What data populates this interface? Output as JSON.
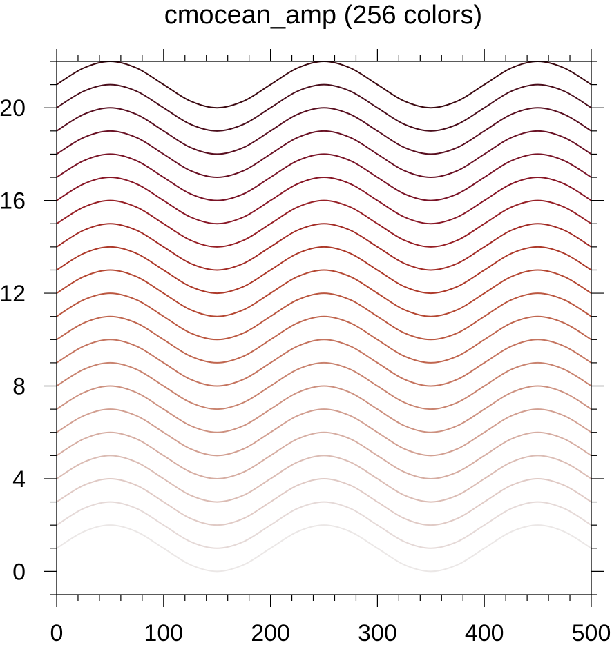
{
  "chart_data": {
    "type": "line",
    "title": "cmocean_amp (256 colors)",
    "xlabel": "",
    "ylabel": "",
    "xlim": [
      0,
      500
    ],
    "ylim": [
      -1,
      22
    ],
    "x_ticks": [
      0,
      100,
      200,
      300,
      400,
      500
    ],
    "y_ticks": [
      0,
      4,
      8,
      12,
      16,
      20
    ],
    "grid": false,
    "legend": "none",
    "x": [
      0,
      25,
      50,
      75,
      100,
      125,
      150,
      175,
      200,
      225,
      250,
      275,
      300,
      325,
      350,
      375,
      400,
      425,
      450,
      475,
      500
    ],
    "series": [
      {
        "color": "#ebe7e6",
        "values": [
          1,
          1.71,
          2,
          1.71,
          1,
          0.29,
          0,
          0.29,
          1,
          1.71,
          2,
          1.71,
          1,
          0.29,
          0,
          0.29,
          1,
          1.71,
          2,
          1.71,
          1
        ]
      },
      {
        "color": "#e5d9d7",
        "values": [
          2,
          2.71,
          3,
          2.71,
          2,
          1.29,
          1,
          1.29,
          2,
          2.71,
          3,
          2.71,
          2,
          1.29,
          1,
          1.29,
          2,
          2.71,
          3,
          2.71,
          2
        ]
      },
      {
        "color": "#e0cac5",
        "values": [
          3,
          3.71,
          4,
          3.71,
          3,
          2.29,
          2,
          2.29,
          3,
          3.71,
          4,
          3.71,
          3,
          2.29,
          2,
          2.29,
          3,
          3.71,
          4,
          3.71,
          3
        ]
      },
      {
        "color": "#dbbcb4",
        "values": [
          4,
          4.71,
          5,
          4.71,
          4,
          3.29,
          3,
          3.29,
          4,
          4.71,
          5,
          4.71,
          4,
          3.29,
          3,
          3.29,
          4,
          4.71,
          5,
          4.71,
          4
        ]
      },
      {
        "color": "#d6ada2",
        "values": [
          5,
          5.71,
          6,
          5.71,
          5,
          4.29,
          4,
          4.29,
          5,
          5.71,
          6,
          5.71,
          5,
          4.29,
          4,
          4.29,
          5,
          5.71,
          6,
          5.71,
          5
        ]
      },
      {
        "color": "#d29f91",
        "values": [
          6,
          6.71,
          7,
          6.71,
          6,
          5.29,
          5,
          5.29,
          6,
          6.71,
          7,
          6.71,
          6,
          5.29,
          5,
          5.29,
          6,
          6.71,
          7,
          6.71,
          6
        ]
      },
      {
        "color": "#cd9180",
        "values": [
          7,
          7.71,
          8,
          7.71,
          7,
          6.29,
          6,
          6.29,
          7,
          7.71,
          8,
          7.71,
          7,
          6.29,
          6,
          6.29,
          7,
          7.71,
          8,
          7.71,
          7
        ]
      },
      {
        "color": "#c9836f",
        "values": [
          8,
          8.71,
          9,
          8.71,
          8,
          7.29,
          7,
          7.29,
          8,
          8.71,
          9,
          8.71,
          8,
          7.29,
          7,
          7.29,
          8,
          8.71,
          9,
          8.71,
          8
        ]
      },
      {
        "color": "#c5745f",
        "values": [
          9,
          9.71,
          10,
          9.71,
          9,
          8.29,
          8,
          8.29,
          9,
          9.71,
          10,
          9.71,
          9,
          8.29,
          8,
          8.29,
          9,
          9.71,
          10,
          9.71,
          9
        ]
      },
      {
        "color": "#c0664f",
        "values": [
          10,
          10.71,
          11,
          10.71,
          10,
          9.29,
          9,
          9.29,
          10,
          10.71,
          11,
          10.71,
          10,
          9.29,
          9,
          9.29,
          10,
          10.71,
          11,
          10.71,
          10
        ]
      },
      {
        "color": "#bb5740",
        "values": [
          11,
          11.71,
          12,
          11.71,
          11,
          10.29,
          10,
          10.29,
          11,
          11.71,
          12,
          11.71,
          11,
          10.29,
          10,
          10.29,
          11,
          11.71,
          12,
          11.71,
          11
        ]
      },
      {
        "color": "#b54833",
        "values": [
          12,
          12.71,
          13,
          12.71,
          12,
          11.29,
          11,
          11.29,
          12,
          12.71,
          13,
          12.71,
          12,
          11.29,
          11,
          11.29,
          12,
          12.71,
          13,
          12.71,
          12
        ]
      },
      {
        "color": "#ad3929",
        "values": [
          13,
          13.71,
          14,
          13.71,
          13,
          12.29,
          12,
          12.29,
          13,
          13.71,
          14,
          13.71,
          13,
          12.29,
          12,
          12.29,
          13,
          13.71,
          14,
          13.71,
          13
        ]
      },
      {
        "color": "#a22b25",
        "values": [
          14,
          14.71,
          15,
          14.71,
          14,
          13.29,
          13,
          13.29,
          14,
          14.71,
          15,
          14.71,
          14,
          13.29,
          13,
          13.29,
          14,
          14.71,
          15,
          14.71,
          14
        ]
      },
      {
        "color": "#961f25",
        "values": [
          15,
          15.71,
          16,
          15.71,
          15,
          14.29,
          14,
          14.29,
          15,
          15.71,
          16,
          15.71,
          15,
          14.29,
          14,
          14.29,
          15,
          15.71,
          16,
          15.71,
          15
        ]
      },
      {
        "color": "#881726",
        "values": [
          16,
          16.71,
          17,
          16.71,
          16,
          15.29,
          15,
          15.29,
          16,
          16.71,
          17,
          16.71,
          16,
          15.29,
          15,
          15.29,
          16,
          16.71,
          17,
          16.71,
          16
        ]
      },
      {
        "color": "#791326",
        "values": [
          17,
          17.71,
          18,
          17.71,
          17,
          16.29,
          16,
          16.29,
          17,
          17.71,
          18,
          17.71,
          17,
          16.29,
          16,
          16.29,
          17,
          17.71,
          18,
          17.71,
          17
        ]
      },
      {
        "color": "#691124",
        "values": [
          18,
          18.71,
          19,
          18.71,
          18,
          17.29,
          17,
          17.29,
          18,
          18.71,
          19,
          18.71,
          18,
          17.29,
          17,
          17.29,
          18,
          18.71,
          19,
          18.71,
          18
        ]
      },
      {
        "color": "#590f20",
        "values": [
          19,
          19.71,
          20,
          19.71,
          19,
          18.29,
          18,
          18.29,
          19,
          19.71,
          20,
          19.71,
          19,
          18.29,
          18,
          18.29,
          19,
          19.71,
          20,
          19.71,
          19
        ]
      },
      {
        "color": "#4a0d1b",
        "values": [
          20,
          20.71,
          21,
          20.71,
          20,
          19.29,
          19,
          19.29,
          20,
          20.71,
          21,
          20.71,
          20,
          19.29,
          19,
          19.29,
          20,
          20.71,
          21,
          20.71,
          20
        ]
      },
      {
        "color": "#3c0911",
        "values": [
          21,
          21.71,
          22,
          21.71,
          21,
          20.29,
          20,
          20.29,
          21,
          21.71,
          22,
          21.71,
          21,
          20.29,
          20,
          20.29,
          21,
          21.71,
          22,
          21.71,
          21
        ]
      }
    ]
  }
}
